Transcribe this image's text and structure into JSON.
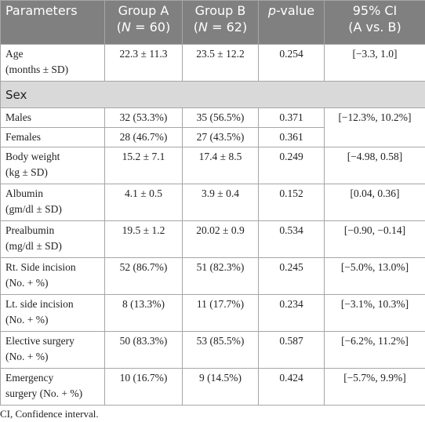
{
  "header": [
    {
      "lines": [
        [
          "Parameters"
        ]
      ]
    },
    {
      "lines": [
        [
          "Group A"
        ],
        [
          "(",
          "N",
          " = 60)"
        ]
      ],
      "italic": [
        [
          1,
          1
        ]
      ]
    },
    {
      "lines": [
        [
          "Group B"
        ],
        [
          "(",
          "N",
          " = 62)"
        ]
      ],
      "italic": [
        [
          1,
          1
        ]
      ]
    },
    {
      "lines": [
        [
          "p",
          "-value"
        ]
      ],
      "italic": [
        [
          0,
          0
        ]
      ]
    },
    {
      "lines": [
        [
          "95% CI"
        ],
        [
          "(A vs. B)"
        ]
      ]
    }
  ],
  "rows": [
    {
      "param": [
        "Age",
        "(months ± SD)"
      ],
      "a": "22.3 ± 11.3",
      "b": "23.5 ± 12.2",
      "p": "0.254",
      "ci": "[−3.3, 1.0]"
    },
    {
      "section": "Sex"
    },
    {
      "param": [
        "Males"
      ],
      "a": "32 (53.3%)",
      "b": "35 (56.5%)",
      "p": "0.371",
      "ci": "[−12.3%, 10.2%]"
    },
    {
      "param": [
        "Females"
      ],
      "a": "28 (46.7%)",
      "b": "27 (43.5%)",
      "p": "0.361"
    },
    {
      "param": [
        "Body weight",
        "(kg ± SD)"
      ],
      "a": "15.2 ± 7.1",
      "b": "17.4 ± 8.5",
      "p": "0.249",
      "ci": "[−4.98, 0.58]"
    },
    {
      "param": [
        "Albumin",
        "(gm/dl ± SD)"
      ],
      "a": "4.1 ± 0.5",
      "b": "3.9 ± 0.4",
      "p": "0.152",
      "ci": "[0.04, 0.36]"
    },
    {
      "param": [
        "Prealbumin",
        "(mg/dl ± SD)"
      ],
      "a": "19.5 ± 1.2",
      "b": "20.02 ± 0.9",
      "p": "0.534",
      "ci": "[−0.90, −0.14]"
    },
    {
      "param": [
        "Rt. Side incision",
        "(No. + %)"
      ],
      "a": "52 (86.7%)",
      "b": "51 (82.3%)",
      "p": "0.245",
      "ci": "[−5.0%, 13.0%]"
    },
    {
      "param": [
        "Lt. side incision",
        "(No. + %)"
      ],
      "a": "8 (13.3%)",
      "b": "11 (17.7%)",
      "p": "0.234",
      "ci": "[−3.1%, 10.3%]"
    },
    {
      "param": [
        "Elective surgery",
        "(No. + %)"
      ],
      "a": "50 (83.3%)",
      "b": "53 (85.5%)",
      "p": "0.587",
      "ci": "[−6.2%, 11.2%]"
    },
    {
      "param": [
        "Emergency",
        "surgery (No. + %)"
      ],
      "a": "10 (16.7%)",
      "b": "9 (14.5%)",
      "p": "0.424",
      "ci": "[−5.7%, 9.9%]"
    }
  ],
  "footnote": "CI, Confidence interval."
}
